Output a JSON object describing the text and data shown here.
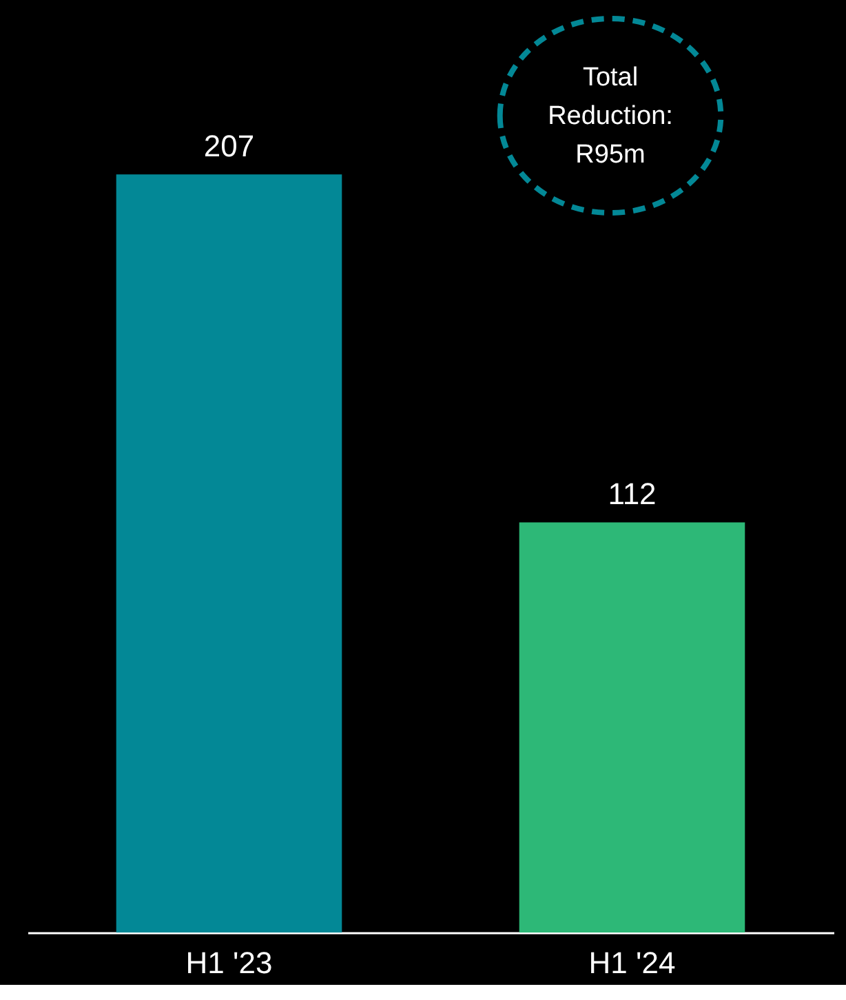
{
  "chart_data": {
    "type": "bar",
    "categories": [
      "H1 '23",
      "H1 '24"
    ],
    "values": [
      207,
      112
    ],
    "colors": [
      "#038896",
      "#2db877"
    ],
    "data_labels": true,
    "grid": false,
    "legend": false,
    "annotations": [
      "Total Reduction: R95m"
    ]
  }
}
